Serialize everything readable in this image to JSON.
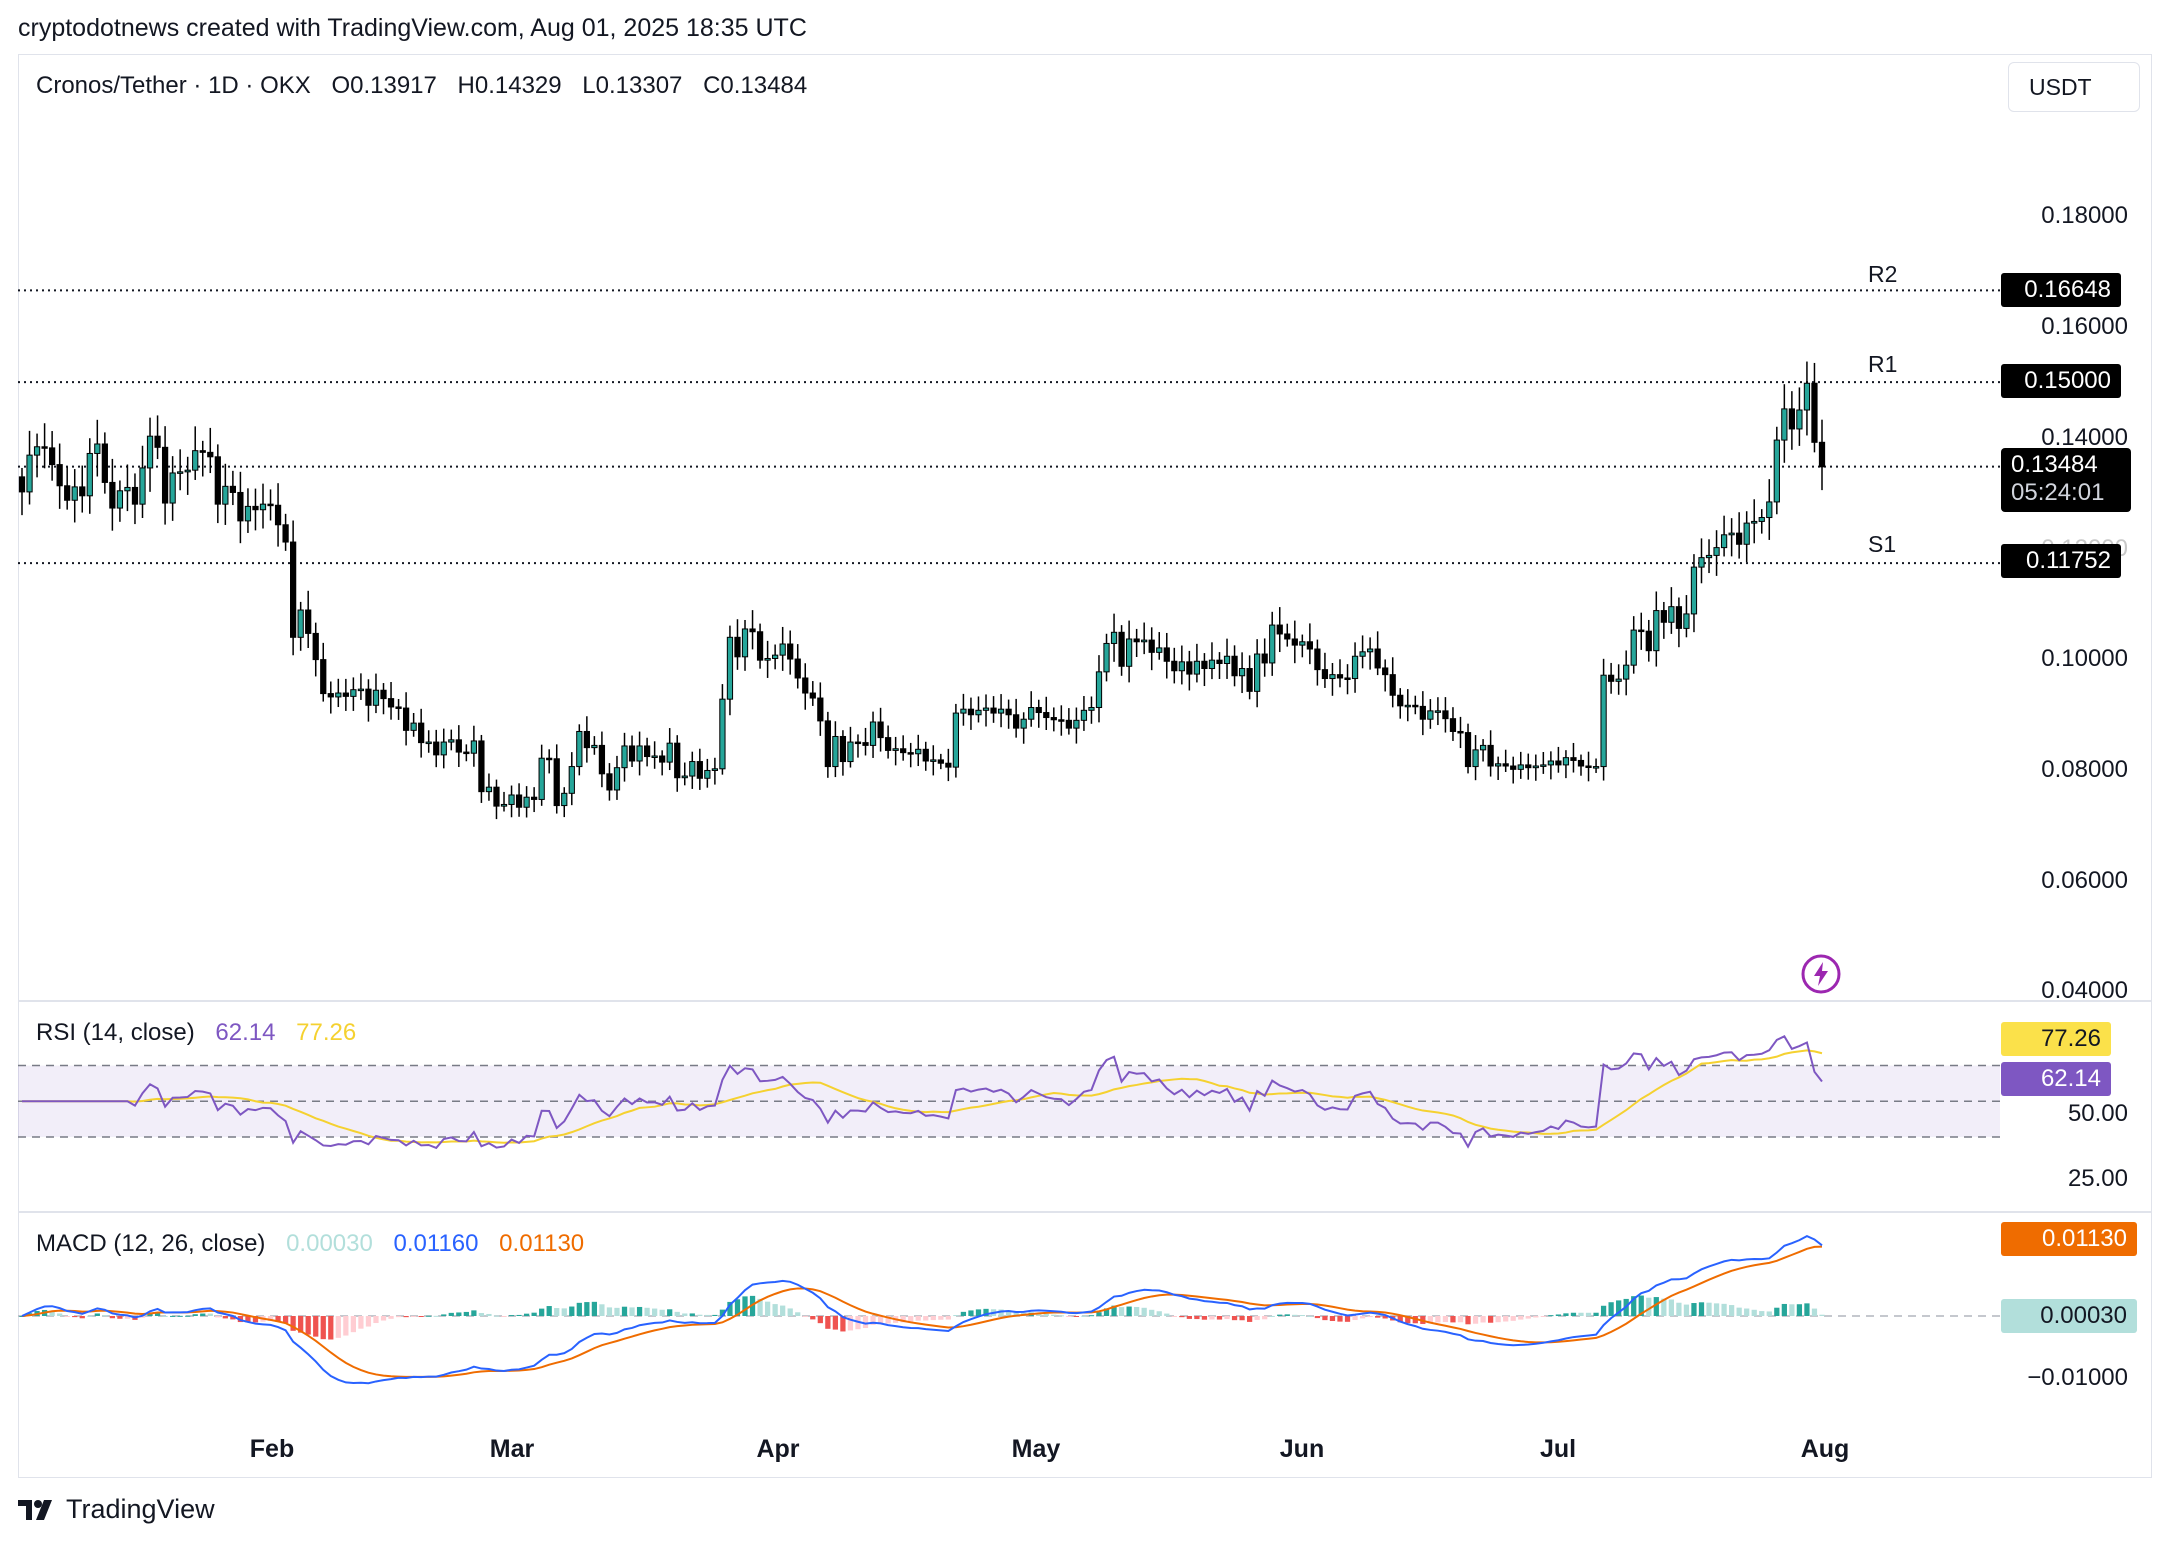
{
  "header": {
    "text": "cryptodotnews created with TradingView.com, Aug 01, 2025 18:35 UTC"
  },
  "symbol": {
    "name": "Cronos/Tether · 1D · OKX",
    "open": "O0.13917",
    "high": "H0.14329",
    "low": "L0.13307",
    "close": "C0.13484"
  },
  "currency_button": "USDT",
  "price_axis": {
    "ticks": [
      "0.18000",
      "0.16000",
      "0.14000",
      "0.12000",
      "0.10000",
      "0.08000",
      "0.06000",
      "0.04000"
    ]
  },
  "levels": {
    "r2": {
      "label": "R2",
      "value": "0.16648"
    },
    "r1": {
      "label": "R1",
      "value": "0.15000"
    },
    "s1": {
      "label": "S1",
      "value": "0.11752"
    },
    "last": {
      "value": "0.13484",
      "countdown": "05:24:01"
    }
  },
  "rsi": {
    "title": "RSI (14, close)",
    "rsi_value": "62.14",
    "ma_value": "77.26",
    "axis_ticks": [
      "50.00",
      "25.00"
    ]
  },
  "macd": {
    "title": "MACD (12, 26, close)",
    "histogram_value": "0.00030",
    "macd_value": "0.01160",
    "signal_value": "0.01130",
    "axis_ticks": [
      "−0.01000"
    ]
  },
  "x_axis": {
    "labels": [
      "Feb",
      "Mar",
      "Apr",
      "May",
      "Jun",
      "Jul",
      "Aug"
    ]
  },
  "colors": {
    "up": "#26a69a",
    "down": "#000000",
    "rsi": "#7e57c2",
    "rsi_ma": "#f5d130",
    "macd": "#2962ff",
    "signal": "#ef6c00",
    "hist_pos": "#26a69a",
    "hist_neg": "#ef5350"
  },
  "footer": {
    "brand": "TradingView"
  },
  "chart_data": {
    "type": "candlestick",
    "title": "Cronos/Tether · 1D · OKX",
    "x_range": [
      "2025-01-01",
      "2025-08-01"
    ],
    "ylim": [
      0.04,
      0.18
    ],
    "closes": [
      0.1303,
      0.1369,
      0.1384,
      0.1382,
      0.1352,
      0.1314,
      0.1288,
      0.1312,
      0.1296,
      0.1372,
      0.1389,
      0.132,
      0.1274,
      0.1305,
      0.1311,
      0.1281,
      0.1346,
      0.1403,
      0.1383,
      0.1283,
      0.1337,
      0.1339,
      0.1342,
      0.1377,
      0.1374,
      0.1366,
      0.1281,
      0.1313,
      0.1302,
      0.1251,
      0.1277,
      0.1271,
      0.1281,
      0.1279,
      0.1244,
      0.1213,
      0.1042,
      0.1091,
      0.1049,
      0.1002,
      0.0941,
      0.0935,
      0.0942,
      0.0936,
      0.0948,
      0.0949,
      0.092,
      0.0947,
      0.0932,
      0.0917,
      0.0915,
      0.0875,
      0.0888,
      0.0853,
      0.0854,
      0.0831,
      0.0854,
      0.0858,
      0.0836,
      0.0834,
      0.0856,
      0.0765,
      0.0773,
      0.0739,
      0.0742,
      0.0759,
      0.0737,
      0.0755,
      0.0751,
      0.0825,
      0.0824,
      0.074,
      0.0762,
      0.081,
      0.0873,
      0.0844,
      0.0848,
      0.0797,
      0.0768,
      0.0808,
      0.0847,
      0.082,
      0.0847,
      0.0828,
      0.0829,
      0.0818,
      0.0852,
      0.079,
      0.0793,
      0.0819,
      0.0789,
      0.0803,
      0.0806,
      0.0931,
      0.1042,
      0.1007,
      0.1057,
      0.1052,
      0.1001,
      0.1004,
      0.101,
      0.103,
      0.1003,
      0.0969,
      0.0942,
      0.0933,
      0.0892,
      0.081,
      0.0864,
      0.0819,
      0.0854,
      0.0853,
      0.0848,
      0.089,
      0.0862,
      0.0839,
      0.0842,
      0.0835,
      0.0833,
      0.0841,
      0.082,
      0.0822,
      0.0816,
      0.0809,
      0.0906,
      0.0913,
      0.0903,
      0.0911,
      0.0915,
      0.0906,
      0.0913,
      0.0903,
      0.0879,
      0.0895,
      0.0916,
      0.0907,
      0.0898,
      0.0894,
      0.0893,
      0.0879,
      0.0893,
      0.0911,
      0.0916,
      0.098,
      0.1031,
      0.1051,
      0.099,
      0.1039,
      0.1034,
      0.1037,
      0.1015,
      0.1023,
      0.0999,
      0.0982,
      0.0998,
      0.0976,
      0.0999,
      0.0986,
      0.1001,
      0.0995,
      0.1008,
      0.0973,
      0.0986,
      0.0945,
      0.1012,
      0.0996,
      0.1064,
      0.1048,
      0.1039,
      0.1028,
      0.1034,
      0.1021,
      0.0984,
      0.0968,
      0.0975,
      0.0969,
      0.0968,
      0.1008,
      0.1016,
      0.1021,
      0.0987,
      0.0975,
      0.0938,
      0.0919,
      0.092,
      0.0918,
      0.0895,
      0.091,
      0.091,
      0.0896,
      0.0873,
      0.0871,
      0.081,
      0.084,
      0.0848,
      0.0811,
      0.0815,
      0.0811,
      0.0805,
      0.0813,
      0.0808,
      0.0811,
      0.0813,
      0.082,
      0.0813,
      0.0826,
      0.0821,
      0.0811,
      0.0809,
      0.081,
      0.0974,
      0.0963,
      0.0967,
      0.0992,
      0.1055,
      0.1053,
      0.1018,
      0.109,
      0.1069,
      0.1097,
      0.1058,
      0.1084,
      0.1168,
      0.1185,
      0.1189,
      0.1203,
      0.1226,
      0.1229,
      0.1209,
      0.1247,
      0.125,
      0.1257,
      0.1285,
      0.1396,
      0.1452,
      0.1416,
      0.145,
      0.1498,
      0.1392,
      0.1348
    ]
  }
}
